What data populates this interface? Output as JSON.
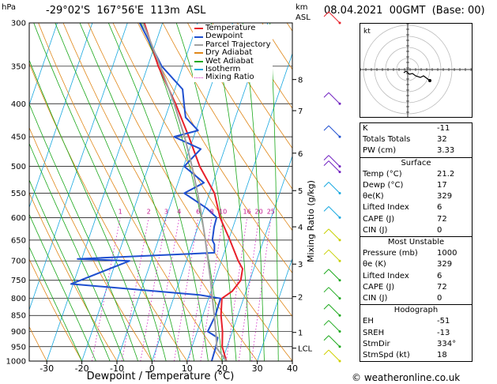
{
  "header": {
    "pressure_unit": "hPa",
    "location": "-29°02'S  167°56'E  113m  ASL",
    "height_unit": "km",
    "height_unit2": "ASL",
    "datetime": "08.04.2021  00GMT  (Base: 00)"
  },
  "footer": {
    "credit": "© weatheronline.co.uk"
  },
  "hodograph": {
    "label": "kt"
  },
  "legend": {
    "items": [
      {
        "label": "Temperature",
        "color": "#e8202a"
      },
      {
        "label": "Dewpoint",
        "color": "#1f4fcf"
      },
      {
        "label": "Parcel Trajectory",
        "color": "#a0a0a0"
      },
      {
        "label": "Dry Adiabat",
        "color": "#e0881a"
      },
      {
        "label": "Wet Adiabat",
        "color": "#1aa81a"
      },
      {
        "label": "Isotherm",
        "color": "#18a8e0"
      },
      {
        "label": "Mixing Ratio",
        "color": "#d020c0"
      }
    ]
  },
  "chart_data": {
    "type": "line",
    "title": "",
    "xlabel": "Dewpoint / Temperature (°C)",
    "ylabel": "hPa",
    "y2label": "Mixing Ratio (g/kg)",
    "xlim": [
      -35,
      40
    ],
    "ylim": [
      1000,
      300
    ],
    "y_scale": "log",
    "x_ticks": [
      "-30",
      "-20",
      "-10",
      "0",
      "10",
      "20",
      "30",
      "40"
    ],
    "pressure_levels": [
      "300",
      "350",
      "400",
      "450",
      "500",
      "550",
      "600",
      "650",
      "700",
      "750",
      "800",
      "850",
      "900",
      "950",
      "1000"
    ],
    "km_ticks": [
      {
        "label": "8",
        "p": 367
      },
      {
        "label": "7",
        "p": 410
      },
      {
        "label": "6",
        "p": 477
      },
      {
        "label": "5",
        "p": 545
      },
      {
        "label": "4",
        "p": 620
      },
      {
        "label": "3",
        "p": 708
      },
      {
        "label": "2",
        "p": 795
      },
      {
        "label": "1",
        "p": 903
      },
      {
        "label": "LCL",
        "p": 955
      }
    ],
    "mixing_ratio_labels": [
      "1",
      "2",
      "3",
      "4",
      "6",
      "8",
      "10",
      "16",
      "20",
      "25"
    ],
    "mixing_ratio_values": [
      1,
      2,
      3,
      4,
      6,
      8,
      10,
      16,
      20,
      25
    ],
    "series": [
      {
        "name": "Temperature",
        "color": "#e8202a",
        "p": [
          1000,
          950,
          900,
          850,
          800,
          780,
          750,
          720,
          700,
          650,
          600,
          550,
          500,
          450,
          400,
          350,
          300
        ],
        "t": [
          21.2,
          18.6,
          17.2,
          15.2,
          13.8,
          16.0,
          17.4,
          16.8,
          14.8,
          10.4,
          5.4,
          1.4,
          -5.4,
          -11.4,
          -18.4,
          -27.0,
          -35.2
        ]
      },
      {
        "name": "Dewpoint",
        "color": "#1f4fcf",
        "p": [
          1000,
          950,
          920,
          900,
          850,
          800,
          790,
          760,
          700,
          695,
          680,
          660,
          650,
          620,
          600,
          580,
          550,
          530,
          500,
          470,
          450,
          440,
          420,
          400,
          380,
          350,
          300
        ],
        "t": [
          17.0,
          16.8,
          16.4,
          13.0,
          13.6,
          13.4,
          7.0,
          -30.6,
          -16.2,
          -31.2,
          7.2,
          6.4,
          5.4,
          4.6,
          4.4,
          0.6,
          -7.2,
          -2.6,
          -9.8,
          -6.8,
          -15.6,
          -9.4,
          -14.2,
          -16.0,
          -17.8,
          -26.0,
          -36.5
        ]
      },
      {
        "name": "Parcel Trajectory",
        "color": "#a0a0a0",
        "p": [
          1000,
          955,
          900,
          850,
          800,
          750,
          700,
          650,
          600,
          550,
          500,
          450,
          400,
          350,
          300
        ],
        "t": [
          21.2,
          17.2,
          15.3,
          13.3,
          11.1,
          8.8,
          6.2,
          3.4,
          0.2,
          -3.4,
          -7.6,
          -12.6,
          -18.8,
          -26.4,
          -35.6
        ]
      }
    ]
  },
  "indices": {
    "rows": [
      {
        "label": "K",
        "value": "-11"
      },
      {
        "label": "Totals Totals",
        "value": "32"
      },
      {
        "label": "PW (cm)",
        "value": "3.33"
      }
    ],
    "surface": {
      "title": "Surface",
      "rows": [
        {
          "label": "Temp (°C)",
          "value": "21.2"
        },
        {
          "label": "Dewp (°C)",
          "value": "17"
        },
        {
          "label": "θe(K)",
          "value": "329"
        },
        {
          "label": "Lifted Index",
          "value": "6"
        },
        {
          "label": "CAPE (J)",
          "value": "72"
        },
        {
          "label": "CIN (J)",
          "value": "0"
        }
      ]
    },
    "most_unstable": {
      "title": "Most Unstable",
      "rows": [
        {
          "label": "Pressure (mb)",
          "value": "1000"
        },
        {
          "label": "θe (K)",
          "value": "329"
        },
        {
          "label": "Lifted Index",
          "value": "6"
        },
        {
          "label": "CAPE (J)",
          "value": "72"
        },
        {
          "label": "CIN (J)",
          "value": "0"
        }
      ]
    },
    "hodograph": {
      "title": "Hodograph",
      "rows": [
        {
          "label": "EH",
          "value": "-51"
        },
        {
          "label": "SREH",
          "value": "-13"
        },
        {
          "label": "StmDir",
          "value": "334°"
        },
        {
          "label": "StmSpd (kt)",
          "value": "18"
        }
      ]
    }
  }
}
